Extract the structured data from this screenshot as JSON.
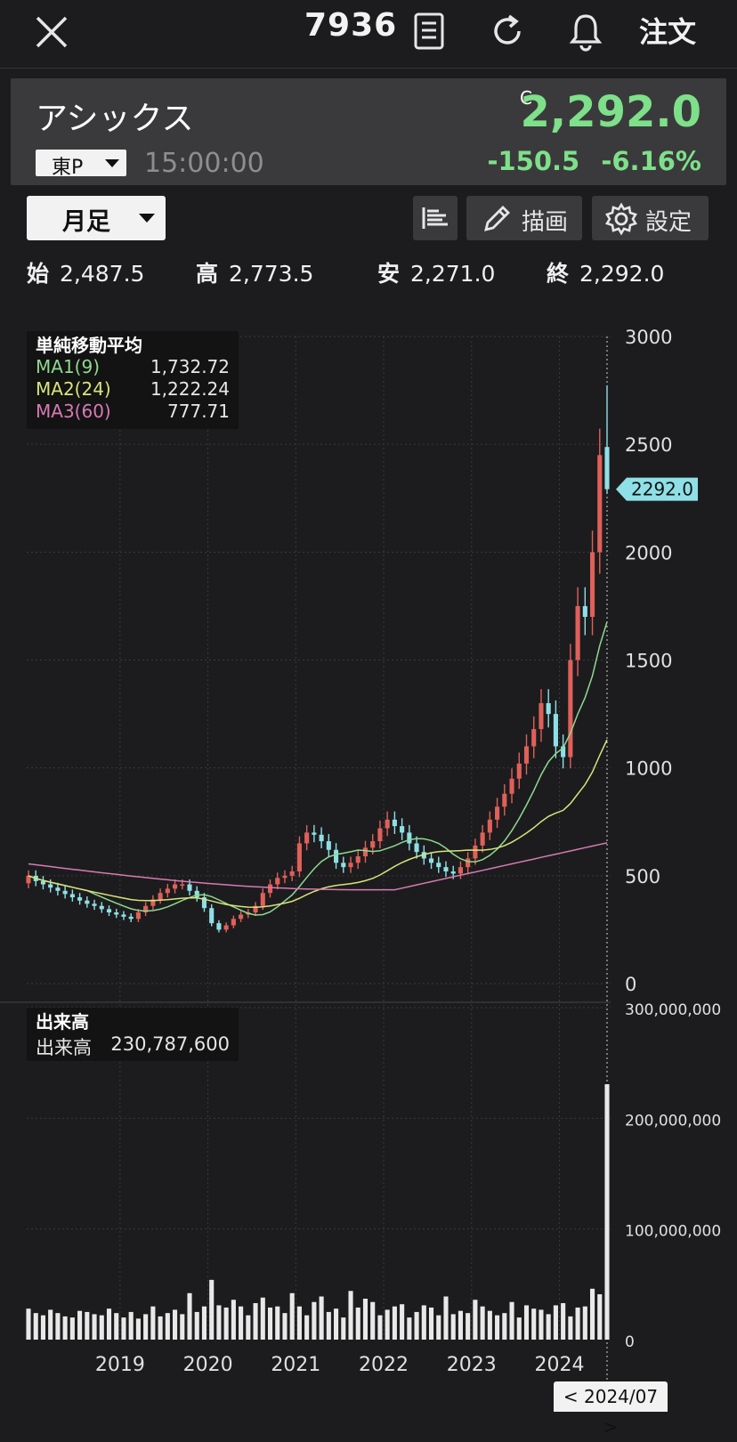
{
  "header": {
    "stock_code": "7936",
    "order_label": "注文",
    "close_icon": "close-icon",
    "news_icon": "document-icon",
    "refresh_icon": "refresh-icon",
    "alert_icon": "bell-icon"
  },
  "quote": {
    "name": "アシックス",
    "market": "東P",
    "time": "15:00:00",
    "c_mark": "C",
    "price": "2,292.0",
    "change": "-150.5",
    "change_pct": "-6.16%"
  },
  "toolbar": {
    "period": "月足",
    "draw_label": "描画",
    "settings_label": "設定"
  },
  "ohlc": {
    "open_label": "始",
    "open": "2,487.5",
    "high_label": "高",
    "high": "2,773.5",
    "low_label": "安",
    "low": "2,271.0",
    "close_label": "終",
    "close": "2,292.0"
  },
  "ma_legend": {
    "title": "単純移動平均",
    "items": [
      {
        "label": "MA1(9)",
        "value": "1,732.72",
        "color": "#8fd98f"
      },
      {
        "label": "MA2(24)",
        "value": "1,222.24",
        "color": "#d8e37a"
      },
      {
        "label": "MA3(60)",
        "value": "777.71",
        "color": "#d77ab4"
      }
    ]
  },
  "vol_legend": {
    "title": "出来高",
    "label": "出来高",
    "value": "230,787,600"
  },
  "colors": {
    "up": "#e0605a",
    "down": "#8fe0e6",
    "last_price_tag": "#8fe0e6",
    "volume": "#e8e8e8"
  },
  "chart_data": {
    "type": "candlestick",
    "interval": "monthly",
    "x_ticks": [
      "2019",
      "2020",
      "2021",
      "2022",
      "2023",
      "2024"
    ],
    "price_axis_labels": [
      "3000",
      "2500",
      "2000",
      "1500",
      "1000",
      "500",
      "0"
    ],
    "price_ylim": [
      0,
      3000
    ],
    "volume_axis_labels": [
      "300,000,000",
      "200,000,000",
      "100,000,000",
      "0"
    ],
    "volume_ylim": [
      0,
      300000000
    ],
    "last_price_label": "2292.0",
    "nav_date_label": "< 2024/07 >",
    "grid": true,
    "closes": [
      500,
      475,
      460,
      445,
      430,
      415,
      400,
      385,
      370,
      360,
      345,
      330,
      320,
      310,
      300,
      330,
      360,
      390,
      420,
      440,
      460,
      460,
      430,
      400,
      350,
      280,
      250,
      270,
      300,
      320,
      330,
      360,
      420,
      460,
      490,
      500,
      520,
      650,
      700,
      690,
      660,
      620,
      560,
      540,
      560,
      590,
      630,
      660,
      720,
      760,
      730,
      700,
      650,
      610,
      580,
      560,
      540,
      520,
      510,
      540,
      580,
      640,
      700,
      760,
      820,
      880,
      950,
      1020,
      1100,
      1180,
      1300,
      1250,
      1100,
      1050,
      1500,
      1750,
      1700,
      2000,
      2450,
      2292
    ],
    "volumes_m": [
      28,
      24,
      22,
      27,
      24,
      21,
      20,
      26,
      25,
      23,
      22,
      28,
      24,
      20,
      25,
      19,
      23,
      30,
      21,
      24,
      27,
      23,
      42,
      25,
      30,
      54,
      31,
      29,
      36,
      30,
      22,
      33,
      38,
      29,
      30,
      24,
      42,
      30,
      22,
      34,
      39,
      25,
      28,
      20,
      44,
      29,
      37,
      34,
      22,
      27,
      30,
      32,
      20,
      25,
      31,
      29,
      22,
      39,
      23,
      26,
      24,
      36,
      30,
      26,
      22,
      24,
      34,
      20,
      31,
      28,
      27,
      23,
      31,
      33,
      21,
      29,
      30,
      46,
      41,
      230.8
    ]
  }
}
